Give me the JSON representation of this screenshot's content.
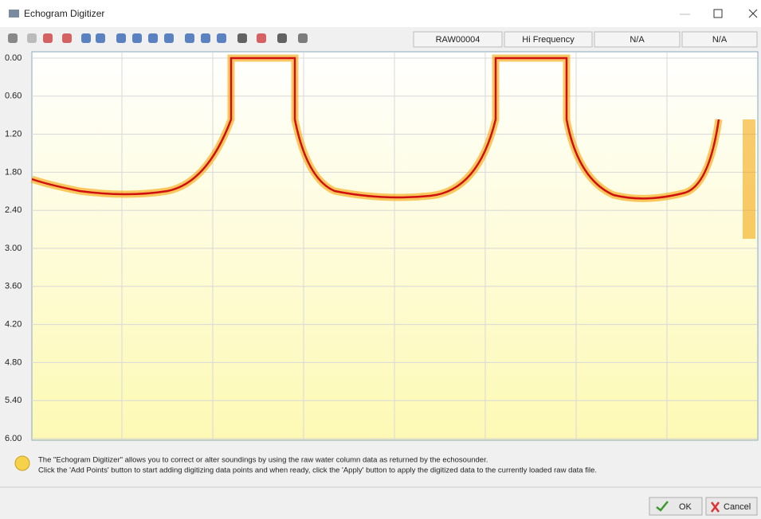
{
  "window": {
    "title": "Echogram Digitizer"
  },
  "status": [
    "RAW00004",
    "Hi Frequency",
    "N/A",
    "N/A"
  ],
  "echogram": {
    "ylim": [
      0,
      6
    ],
    "yticks": [
      {
        "value": 0,
        "label": "0.00"
      },
      {
        "value": 0.6,
        "label": "0.60"
      },
      {
        "value": 1.2,
        "label": "1.20"
      },
      {
        "value": 1.8,
        "label": "1.80"
      },
      {
        "value": 2.4,
        "label": "2.40"
      },
      {
        "value": 3,
        "label": "3.00"
      },
      {
        "value": 3.6,
        "label": "3.60"
      },
      {
        "value": 4.2,
        "label": "4.20"
      },
      {
        "value": 4.8,
        "label": "4.80"
      },
      {
        "value": 5.4,
        "label": "5.40"
      },
      {
        "value": 6,
        "label": "6.00"
      }
    ],
    "grid": true
  },
  "info": [
    "The \"Echogram Digitizer\" allows you to correct or alter soundings by using the raw water column data as returned by the echosounder.",
    "Click the 'Add Points' button to start adding digitizing data points and when ready, click the 'Apply' button to apply the digitized data to the currently loaded raw data file."
  ],
  "buttons": {
    "ok": "OK",
    "cancel": "Cancel"
  }
}
